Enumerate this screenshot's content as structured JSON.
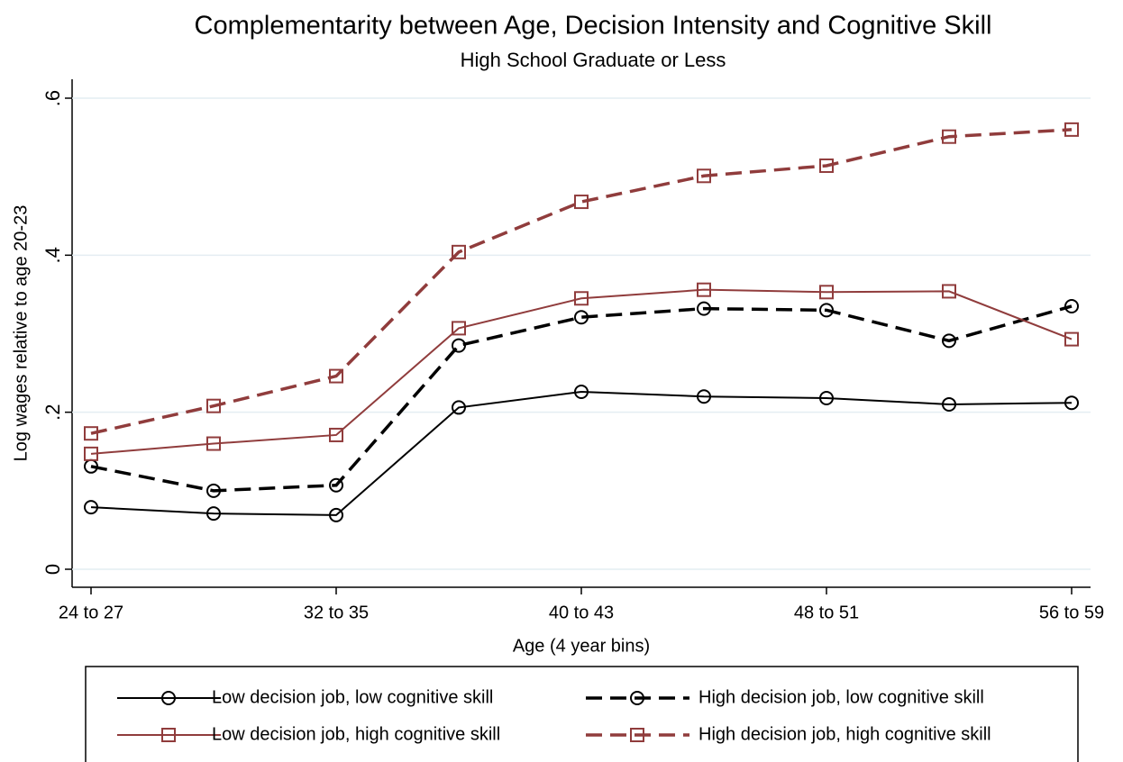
{
  "chart_data": {
    "type": "line",
    "title": "Complementarity between Age, Decision Intensity and Cognitive Skill",
    "subtitle": "High School Graduate or Less",
    "x_label": "Age (4 year bins)",
    "y_label": "Log wages relative to age 20-23",
    "categories": [
      "24 to 27",
      null,
      "32 to 35",
      null,
      "40 to 43",
      null,
      "48 to 51",
      null,
      "56 to 59"
    ],
    "series": [
      {
        "name": "Low decision job, low cognitive skill",
        "color": "#000000",
        "dashed": false,
        "marker": "circle",
        "values": [
          0.079,
          0.071,
          0.069,
          0.206,
          0.226,
          0.22,
          0.218,
          0.21,
          0.212
        ]
      },
      {
        "name": "High decision job, low cognitive skill",
        "color": "#000000",
        "dashed": true,
        "marker": "circle",
        "values": [
          0.131,
          0.1,
          0.107,
          0.285,
          0.321,
          0.332,
          0.33,
          0.291,
          0.335
        ]
      },
      {
        "name": "Low decision job, high cognitive skill",
        "color": "#903c3c",
        "dashed": false,
        "marker": "square",
        "values": [
          0.147,
          0.16,
          0.171,
          0.307,
          0.345,
          0.356,
          0.353,
          0.354,
          0.293
        ]
      },
      {
        "name": "High decision job, high cognitive skill",
        "color": "#903c3c",
        "dashed": true,
        "marker": "square",
        "values": [
          0.173,
          0.208,
          0.246,
          0.404,
          0.468,
          0.501,
          0.514,
          0.551,
          0.56
        ]
      }
    ],
    "ylim": [
      0,
      0.6
    ],
    "yticks": [
      0,
      {
        "value": 0.2,
        "label": ".2"
      },
      {
        "value": 0.4,
        "label": ".4"
      },
      {
        "value": 0.6,
        "label": ".6"
      }
    ],
    "grid": true
  }
}
